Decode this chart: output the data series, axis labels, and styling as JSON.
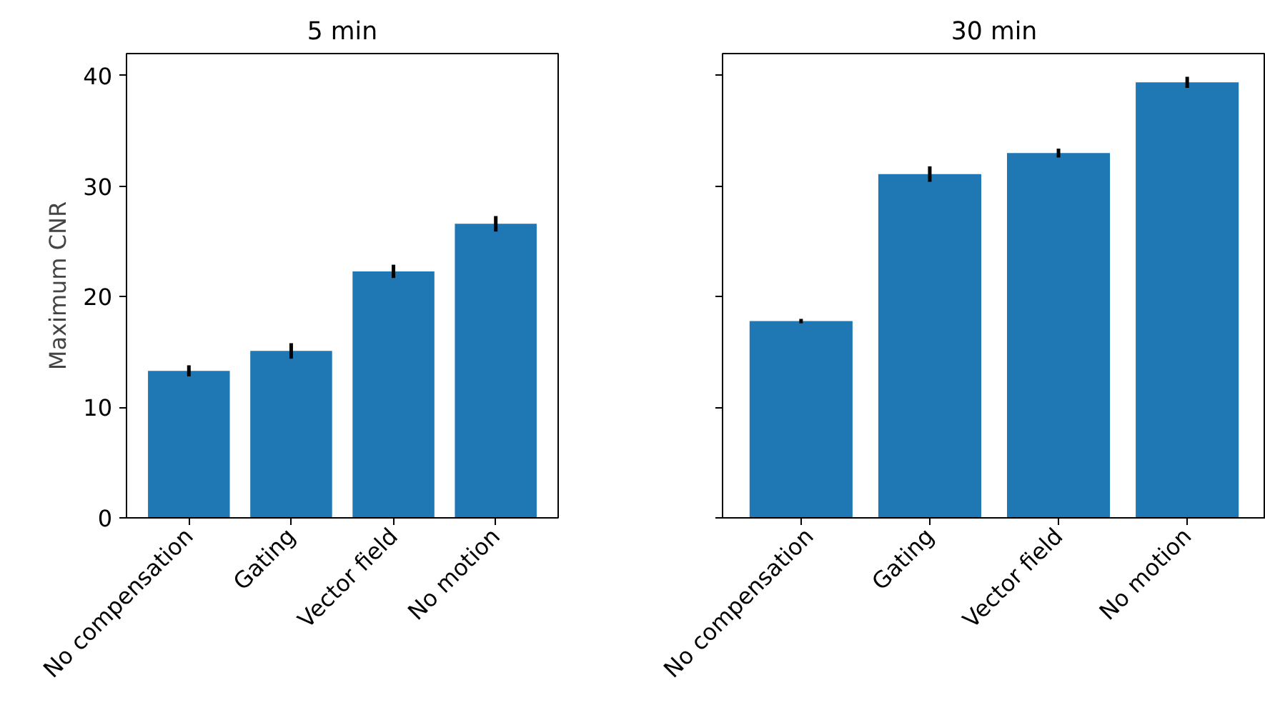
{
  "chart_data": [
    {
      "type": "bar",
      "title": "5 min",
      "ylabel": "Maximum CNR",
      "categories": [
        "No compensation",
        "Gating",
        "Vector field",
        "No motion"
      ],
      "values": [
        13.3,
        15.1,
        22.3,
        26.6
      ],
      "errors": [
        0.5,
        0.7,
        0.6,
        0.7
      ],
      "color": "#1f77b4",
      "ylim": [
        0,
        42
      ],
      "yticks": [
        0,
        10,
        20,
        30,
        40
      ],
      "grid": false
    },
    {
      "type": "bar",
      "title": "30 min",
      "categories": [
        "No compensation",
        "Gating",
        "Vector field",
        "No motion"
      ],
      "values": [
        17.8,
        31.1,
        33.0,
        39.4
      ],
      "errors": [
        0.2,
        0.7,
        0.4,
        0.5
      ],
      "color": "#1f77b4",
      "ylim": [
        0,
        42
      ],
      "yticks": [
        0,
        10,
        20,
        30,
        40
      ],
      "tick_labels": "x",
      "grid": false
    }
  ]
}
